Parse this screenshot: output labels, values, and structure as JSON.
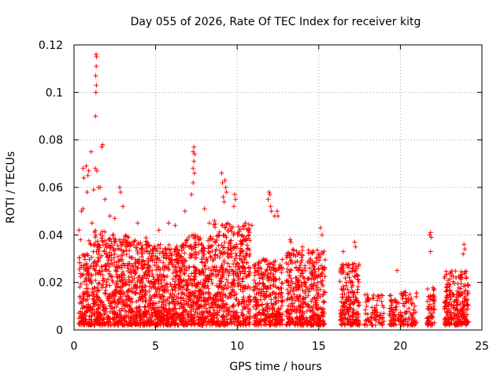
{
  "chart_data": {
    "type": "scatter",
    "title": "Day 055 of 2026, Rate Of TEC Index for receiver kitg",
    "xlabel": "GPS time / hours",
    "ylabel": "ROTI / TECUs",
    "xlim": [
      0,
      25
    ],
    "ylim": [
      0,
      0.12
    ],
    "xticks": [
      0,
      5,
      10,
      15,
      20,
      25
    ],
    "yticks": [
      0,
      0.02,
      0.04,
      0.06,
      0.08,
      0.1,
      0.12
    ],
    "xtick_labels": [
      "0",
      "5",
      "10",
      "15",
      "20",
      "25"
    ],
    "ytick_labels": [
      "0",
      "0.02",
      "0.04",
      "0.06",
      "0.08",
      "0.1",
      "0.12"
    ],
    "grid": true,
    "marker": "+",
    "color": "#ff0000",
    "outliers": [
      [
        1.35,
        0.116
      ],
      [
        1.38,
        0.115
      ],
      [
        1.36,
        0.111
      ],
      [
        1.33,
        0.107
      ],
      [
        1.37,
        0.103
      ],
      [
        1.34,
        0.1
      ],
      [
        1.32,
        0.09
      ],
      [
        1.05,
        0.075
      ],
      [
        1.75,
        0.078
      ],
      [
        1.7,
        0.077
      ],
      [
        0.55,
        0.068
      ],
      [
        0.75,
        0.069
      ],
      [
        0.9,
        0.067
      ],
      [
        0.6,
        0.064
      ],
      [
        0.85,
        0.065
      ],
      [
        1.3,
        0.068
      ],
      [
        1.4,
        0.067
      ],
      [
        1.5,
        0.06
      ],
      [
        0.8,
        0.058
      ],
      [
        1.2,
        0.059
      ],
      [
        0.45,
        0.05
      ],
      [
        0.55,
        0.051
      ],
      [
        1.6,
        0.06
      ],
      [
        1.9,
        0.055
      ],
      [
        2.8,
        0.06
      ],
      [
        2.85,
        0.058
      ],
      [
        3.0,
        0.052
      ],
      [
        7.35,
        0.077
      ],
      [
        7.3,
        0.075
      ],
      [
        7.4,
        0.074
      ],
      [
        7.35,
        0.071
      ],
      [
        7.3,
        0.068
      ],
      [
        7.38,
        0.066
      ],
      [
        7.3,
        0.062
      ],
      [
        7.2,
        0.057
      ],
      [
        9.05,
        0.066
      ],
      [
        9.1,
        0.062
      ],
      [
        9.25,
        0.063
      ],
      [
        9.3,
        0.06
      ],
      [
        9.35,
        0.058
      ],
      [
        9.15,
        0.056
      ],
      [
        9.2,
        0.054
      ],
      [
        9.85,
        0.057
      ],
      [
        9.9,
        0.055
      ],
      [
        9.8,
        0.052
      ],
      [
        11.95,
        0.058
      ],
      [
        12.0,
        0.057
      ],
      [
        11.9,
        0.055
      ],
      [
        12.05,
        0.052
      ],
      [
        12.1,
        0.05
      ],
      [
        12.3,
        0.048
      ],
      [
        12.45,
        0.05
      ],
      [
        12.5,
        0.048
      ],
      [
        13.25,
        0.038
      ],
      [
        13.3,
        0.037
      ],
      [
        14.0,
        0.035
      ],
      [
        15.1,
        0.043
      ],
      [
        15.2,
        0.04
      ],
      [
        16.5,
        0.033
      ],
      [
        17.2,
        0.037
      ],
      [
        17.25,
        0.035
      ],
      [
        19.8,
        0.025
      ],
      [
        21.8,
        0.04
      ],
      [
        21.85,
        0.041
      ],
      [
        21.9,
        0.039
      ],
      [
        21.85,
        0.033
      ],
      [
        23.9,
        0.036
      ],
      [
        23.95,
        0.034
      ],
      [
        23.85,
        0.032
      ],
      [
        2.2,
        0.048
      ],
      [
        2.5,
        0.047
      ],
      [
        3.9,
        0.045
      ],
      [
        5.2,
        0.042
      ],
      [
        5.8,
        0.045
      ],
      [
        6.2,
        0.044
      ],
      [
        8.3,
        0.045
      ],
      [
        8.6,
        0.046
      ],
      [
        10.5,
        0.045
      ],
      [
        10.9,
        0.044
      ],
      [
        6.8,
        0.05
      ],
      [
        8.0,
        0.051
      ],
      [
        0.3,
        0.042
      ],
      [
        0.4,
        0.038
      ],
      [
        1.1,
        0.045
      ]
    ],
    "clusters": [
      {
        "x_start": 0.3,
        "x_end": 0.9,
        "y_max": 0.032,
        "n": 120
      },
      {
        "x_start": 0.9,
        "x_end": 2.2,
        "y_max": 0.042,
        "n": 260
      },
      {
        "x_start": 2.2,
        "x_end": 4.5,
        "y_max": 0.04,
        "n": 520
      },
      {
        "x_start": 4.5,
        "x_end": 6.5,
        "y_max": 0.036,
        "n": 440
      },
      {
        "x_start": 6.5,
        "x_end": 8.5,
        "y_max": 0.04,
        "n": 460
      },
      {
        "x_start": 8.5,
        "x_end": 10.8,
        "y_max": 0.045,
        "n": 500
      },
      {
        "x_start": 11.0,
        "x_end": 12.8,
        "y_max": 0.03,
        "n": 320
      },
      {
        "x_start": 13.0,
        "x_end": 15.4,
        "y_max": 0.034,
        "n": 440
      },
      {
        "x_start": 16.3,
        "x_end": 17.5,
        "y_max": 0.028,
        "n": 200
      },
      {
        "x_start": 17.8,
        "x_end": 19.0,
        "y_max": 0.015,
        "n": 80
      },
      {
        "x_start": 19.3,
        "x_end": 21.0,
        "y_max": 0.016,
        "n": 140
      },
      {
        "x_start": 21.6,
        "x_end": 22.1,
        "y_max": 0.018,
        "n": 60
      },
      {
        "x_start": 22.7,
        "x_end": 24.2,
        "y_max": 0.025,
        "n": 260
      }
    ]
  }
}
